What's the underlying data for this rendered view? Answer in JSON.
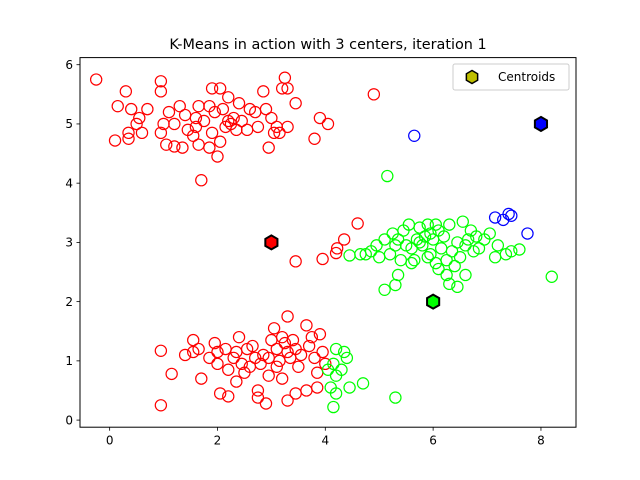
{
  "chart_data": {
    "type": "scatter",
    "title": "K-Means in action with 3 centers, iteration 1",
    "xlabel": "",
    "ylabel": "",
    "xlim": [
      -0.55,
      8.65
    ],
    "ylim": [
      -0.12,
      6.12
    ],
    "x_ticks": [
      0,
      2,
      4,
      6,
      8
    ],
    "y_ticks": [
      0,
      1,
      2,
      3,
      4,
      5,
      6
    ],
    "grid": false,
    "legend_position": "top-right",
    "legend": [
      {
        "label": "Centroids",
        "marker": "hexagon",
        "color": "#bfbf00"
      }
    ],
    "series": [
      {
        "color": "#ff0000",
        "points": [
          [
            -0.25,
            5.75
          ],
          [
            0.3,
            5.55
          ],
          [
            0.15,
            5.3
          ],
          [
            0.4,
            5.25
          ],
          [
            0.55,
            5.1
          ],
          [
            0.7,
            5.25
          ],
          [
            0.5,
            5.0
          ],
          [
            0.35,
            4.85
          ],
          [
            0.6,
            4.85
          ],
          [
            0.1,
            4.72
          ],
          [
            0.35,
            4.75
          ],
          [
            0.95,
            5.72
          ],
          [
            0.95,
            5.55
          ],
          [
            1.1,
            5.2
          ],
          [
            1.3,
            5.3
          ],
          [
            1.2,
            5.0
          ],
          [
            1.0,
            5.0
          ],
          [
            0.95,
            4.85
          ],
          [
            1.05,
            4.65
          ],
          [
            1.2,
            4.62
          ],
          [
            1.4,
            5.15
          ],
          [
            1.45,
            4.9
          ],
          [
            1.35,
            4.6
          ],
          [
            1.55,
            4.8
          ],
          [
            1.6,
            5.1
          ],
          [
            1.65,
            5.3
          ],
          [
            1.75,
            5.05
          ],
          [
            1.65,
            4.65
          ],
          [
            1.85,
            4.6
          ],
          [
            1.9,
            4.85
          ],
          [
            1.95,
            5.2
          ],
          [
            1.9,
            5.6
          ],
          [
            2.05,
            5.6
          ],
          [
            2.0,
            4.45
          ],
          [
            2.05,
            4.7
          ],
          [
            2.15,
            4.95
          ],
          [
            2.1,
            5.25
          ],
          [
            2.2,
            5.45
          ],
          [
            2.3,
            5.1
          ],
          [
            2.35,
            4.9
          ],
          [
            2.25,
            5.0
          ],
          [
            2.4,
            5.35
          ],
          [
            2.45,
            5.05
          ],
          [
            2.6,
            5.25
          ],
          [
            2.7,
            5.2
          ],
          [
            2.85,
            5.55
          ],
          [
            2.9,
            5.25
          ],
          [
            3.0,
            5.1
          ],
          [
            3.05,
            4.85
          ],
          [
            3.1,
            4.95
          ],
          [
            2.95,
            4.6
          ],
          [
            3.15,
            4.85
          ],
          [
            3.2,
            5.6
          ],
          [
            3.25,
            5.78
          ],
          [
            3.3,
            5.6
          ],
          [
            3.45,
            5.35
          ],
          [
            3.3,
            4.95
          ],
          [
            3.8,
            4.75
          ],
          [
            3.9,
            5.1
          ],
          [
            4.05,
            5.0
          ],
          [
            4.9,
            5.5
          ],
          [
            1.7,
            4.05
          ],
          [
            2.75,
            4.95
          ],
          [
            2.55,
            4.9
          ],
          [
            1.6,
            4.95
          ],
          [
            1.85,
            5.3
          ],
          [
            2.2,
            5.05
          ],
          [
            3.45,
            2.68
          ],
          [
            3.95,
            2.72
          ],
          [
            4.2,
            2.82
          ],
          [
            4.22,
            2.9
          ],
          [
            4.35,
            3.05
          ],
          [
            4.6,
            3.32
          ],
          [
            0.95,
            0.25
          ],
          [
            0.95,
            1.17
          ],
          [
            1.15,
            0.78
          ],
          [
            1.4,
            1.1
          ],
          [
            1.55,
            1.15
          ],
          [
            1.55,
            1.35
          ],
          [
            1.65,
            1.2
          ],
          [
            1.7,
            0.7
          ],
          [
            1.85,
            1.05
          ],
          [
            2.0,
            0.95
          ],
          [
            1.95,
            1.3
          ],
          [
            2.0,
            1.15
          ],
          [
            2.05,
            0.45
          ],
          [
            2.15,
            1.2
          ],
          [
            2.2,
            0.85
          ],
          [
            2.2,
            0.4
          ],
          [
            2.3,
            1.05
          ],
          [
            2.35,
            0.65
          ],
          [
            2.4,
            1.4
          ],
          [
            2.45,
            0.95
          ],
          [
            2.5,
            0.8
          ],
          [
            2.55,
            1.2
          ],
          [
            2.6,
            0.9
          ],
          [
            2.7,
            1.05
          ],
          [
            2.75,
            0.5
          ],
          [
            2.8,
            0.95
          ],
          [
            2.85,
            1.1
          ],
          [
            2.9,
            0.28
          ],
          [
            2.95,
            1.05
          ],
          [
            3.0,
            1.35
          ],
          [
            3.05,
            1.55
          ],
          [
            3.1,
            1.2
          ],
          [
            3.15,
            1.0
          ],
          [
            3.2,
            0.7
          ],
          [
            3.25,
            1.3
          ],
          [
            3.3,
            1.15
          ],
          [
            3.3,
            1.75
          ],
          [
            3.35,
            1.05
          ],
          [
            3.4,
            1.35
          ],
          [
            3.45,
            1.2
          ],
          [
            3.5,
            0.9
          ],
          [
            3.55,
            1.1
          ],
          [
            3.65,
            1.6
          ],
          [
            3.7,
            1.25
          ],
          [
            3.75,
            1.4
          ],
          [
            3.8,
            1.05
          ],
          [
            3.85,
            0.8
          ],
          [
            3.9,
            1.45
          ],
          [
            3.95,
            1.15
          ],
          [
            4.0,
            0.95
          ],
          [
            3.45,
            0.45
          ],
          [
            3.3,
            0.33
          ],
          [
            3.65,
            0.5
          ],
          [
            2.75,
            0.38
          ],
          [
            3.85,
            0.55
          ],
          [
            2.95,
            0.75
          ],
          [
            2.35,
            1.15
          ],
          [
            2.65,
            1.25
          ],
          [
            3.1,
            0.9
          ],
          [
            3.2,
            1.4
          ]
        ]
      },
      {
        "color": "#00ff00",
        "points": [
          [
            5.15,
            4.12
          ],
          [
            4.45,
            2.78
          ],
          [
            4.65,
            2.8
          ],
          [
            4.75,
            2.8
          ],
          [
            4.85,
            2.85
          ],
          [
            4.95,
            2.95
          ],
          [
            5.0,
            2.75
          ],
          [
            5.1,
            3.05
          ],
          [
            5.2,
            2.8
          ],
          [
            5.25,
            3.15
          ],
          [
            5.3,
            2.95
          ],
          [
            5.35,
            2.45
          ],
          [
            5.35,
            3.05
          ],
          [
            5.4,
            2.7
          ],
          [
            5.45,
            3.2
          ],
          [
            5.5,
            2.95
          ],
          [
            5.55,
            3.3
          ],
          [
            5.6,
            2.9
          ],
          [
            5.65,
            2.7
          ],
          [
            5.7,
            3.05
          ],
          [
            5.75,
            3.25
          ],
          [
            5.8,
            2.95
          ],
          [
            5.85,
            3.1
          ],
          [
            5.9,
            3.3
          ],
          [
            5.95,
            2.8
          ],
          [
            6.0,
            3.05
          ],
          [
            6.05,
            2.65
          ],
          [
            6.1,
            3.2
          ],
          [
            6.15,
            2.9
          ],
          [
            6.2,
            3.1
          ],
          [
            6.25,
            2.7
          ],
          [
            6.3,
            3.3
          ],
          [
            6.35,
            2.85
          ],
          [
            6.4,
            2.6
          ],
          [
            6.45,
            3.0
          ],
          [
            6.5,
            2.75
          ],
          [
            6.55,
            3.35
          ],
          [
            6.6,
            2.95
          ],
          [
            6.65,
            3.05
          ],
          [
            6.7,
            3.2
          ],
          [
            6.75,
            2.85
          ],
          [
            6.8,
            3.1
          ],
          [
            6.85,
            2.9
          ],
          [
            6.95,
            3.05
          ],
          [
            7.05,
            3.15
          ],
          [
            7.15,
            2.75
          ],
          [
            7.2,
            2.95
          ],
          [
            7.35,
            2.8
          ],
          [
            7.45,
            2.85
          ],
          [
            7.6,
            2.88
          ],
          [
            8.2,
            2.42
          ],
          [
            5.1,
            2.2
          ],
          [
            5.3,
            2.28
          ],
          [
            6.0,
            2.0
          ],
          [
            6.3,
            2.3
          ],
          [
            5.6,
            2.65
          ],
          [
            5.9,
            2.75
          ],
          [
            6.1,
            2.55
          ],
          [
            6.25,
            2.45
          ],
          [
            6.45,
            2.25
          ],
          [
            6.6,
            2.45
          ],
          [
            5.95,
            3.15
          ],
          [
            5.75,
            3.0
          ],
          [
            6.05,
            3.3
          ],
          [
            4.2,
            1.2
          ],
          [
            4.35,
            1.15
          ],
          [
            4.4,
            1.05
          ],
          [
            4.15,
            0.95
          ],
          [
            4.05,
            0.85
          ],
          [
            4.2,
            0.75
          ],
          [
            4.1,
            0.55
          ],
          [
            4.2,
            0.45
          ],
          [
            4.45,
            0.55
          ],
          [
            4.7,
            0.62
          ],
          [
            4.15,
            0.22
          ],
          [
            5.3,
            0.38
          ],
          [
            4.3,
            0.85
          ]
        ]
      },
      {
        "color": "#0000ff",
        "points": [
          [
            5.65,
            4.8
          ],
          [
            7.15,
            3.42
          ],
          [
            7.3,
            3.38
          ],
          [
            7.4,
            3.48
          ],
          [
            7.45,
            3.45
          ],
          [
            7.75,
            3.15
          ]
        ]
      }
    ],
    "centroids": [
      {
        "x": 3.0,
        "y": 3.0,
        "color": "#ff0000"
      },
      {
        "x": 6.0,
        "y": 2.0,
        "color": "#00ff00"
      },
      {
        "x": 8.0,
        "y": 5.0,
        "color": "#0000ff"
      }
    ]
  }
}
